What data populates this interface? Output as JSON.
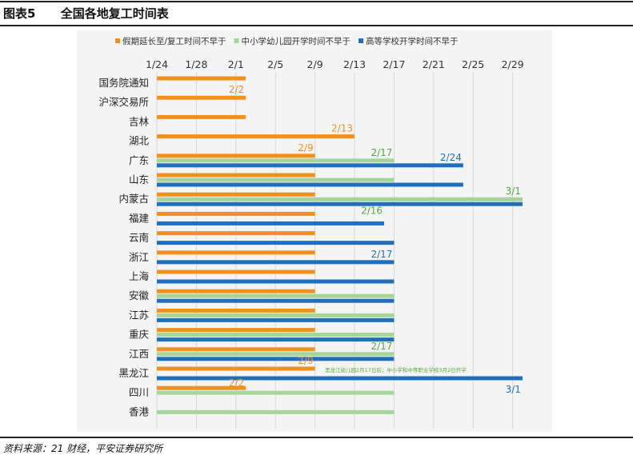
{
  "figure": {
    "label": "图表5",
    "title": "全国各地复工时间表",
    "source": "资料来源：21 财经，平安证券研究所"
  },
  "chart_data": {
    "type": "bar",
    "orientation": "horizontal",
    "x_axis": {
      "ticks": [
        "1/24",
        "1/28",
        "2/1",
        "2/5",
        "2/9",
        "2/13",
        "2/17",
        "2/21",
        "2/25",
        "2/29"
      ],
      "tick_days": [
        0,
        4,
        8,
        12,
        16,
        20,
        24,
        28,
        32,
        36
      ],
      "range_days": [
        0,
        39
      ],
      "position": "top",
      "grid": true
    },
    "legend": {
      "position": "top",
      "items": [
        {
          "name": "假期延长至/复工时间不早于",
          "color": "#f0901e"
        },
        {
          "name": "中小学幼儿园开学时间不早于",
          "color": "#a7d49a"
        },
        {
          "name": "高等学校开学时间不早于",
          "color": "#1f6fbd"
        }
      ]
    },
    "categories": [
      "国务院通知",
      "沪深交易所",
      "吉林",
      "湖北",
      "广东",
      "山东",
      "内蒙古",
      "福建",
      "云南",
      "浙江",
      "上海",
      "安徽",
      "江苏",
      "重庆",
      "江西",
      "黑龙江",
      "四川",
      "香港"
    ],
    "series": [
      {
        "name": "假期延长至/复工时间不早于",
        "color": "#f0901e",
        "values": [
          "2/2",
          "2/2",
          "2/2",
          "2/13",
          "2/9",
          "2/9",
          "2/9",
          "2/9",
          "2/9",
          "2/9",
          "2/9",
          "2/9",
          "2/9",
          "2/9",
          "2/9",
          "2/9",
          "2/2",
          null
        ]
      },
      {
        "name": "中小学幼儿园开学时间不早于",
        "color": "#a7d49a",
        "values": [
          null,
          null,
          null,
          null,
          "2/17",
          "2/17",
          "3/1",
          null,
          null,
          null,
          null,
          "2/17",
          "2/17",
          "2/17",
          "2/17",
          null,
          "2/17",
          "2/17"
        ]
      },
      {
        "name": "高等学校开学时间不早于",
        "color": "#1f6fbd",
        "values": [
          null,
          null,
          null,
          null,
          "2/24",
          "2/24",
          "3/1",
          "2/16",
          "2/17",
          "2/17",
          "2/17",
          "2/17",
          "2/17",
          "2/17",
          "2/17",
          "3/1",
          null,
          null
        ]
      }
    ],
    "data_labels": [
      {
        "category": "沪深交易所",
        "text": "2/2",
        "color": "#f0901e"
      },
      {
        "category": "湖北",
        "text": "2/13",
        "color": "#f0901e"
      },
      {
        "category": "广东",
        "text": "2/9",
        "color": "#f0901e"
      },
      {
        "category": "广东",
        "text": "2/17",
        "color": "#55a843"
      },
      {
        "category": "广东",
        "text": "2/24",
        "color": "#1f6fbd"
      },
      {
        "category": "内蒙古",
        "text": "3/1",
        "color": "#55a843"
      },
      {
        "category": "福建",
        "text": "2/16",
        "color": "#55a843"
      },
      {
        "category": "浙江",
        "text": "2/17",
        "color": "#1f6fbd"
      },
      {
        "category": "江西",
        "text": "2/17",
        "color": "#55a843"
      },
      {
        "category": "黑龙江",
        "text": "2/9",
        "color": "#f0901e"
      },
      {
        "category": "黑龙江",
        "text": "3/1",
        "color": "#1f6fbd"
      },
      {
        "category": "四川",
        "text": "2/2",
        "color": "#f0901e"
      }
    ],
    "annotations": [
      {
        "category": "黑龙江",
        "text": "黑龙江幼儿园2月17日后；中小学和中等职业学校3月2日开学",
        "color": "#55a843"
      }
    ]
  }
}
